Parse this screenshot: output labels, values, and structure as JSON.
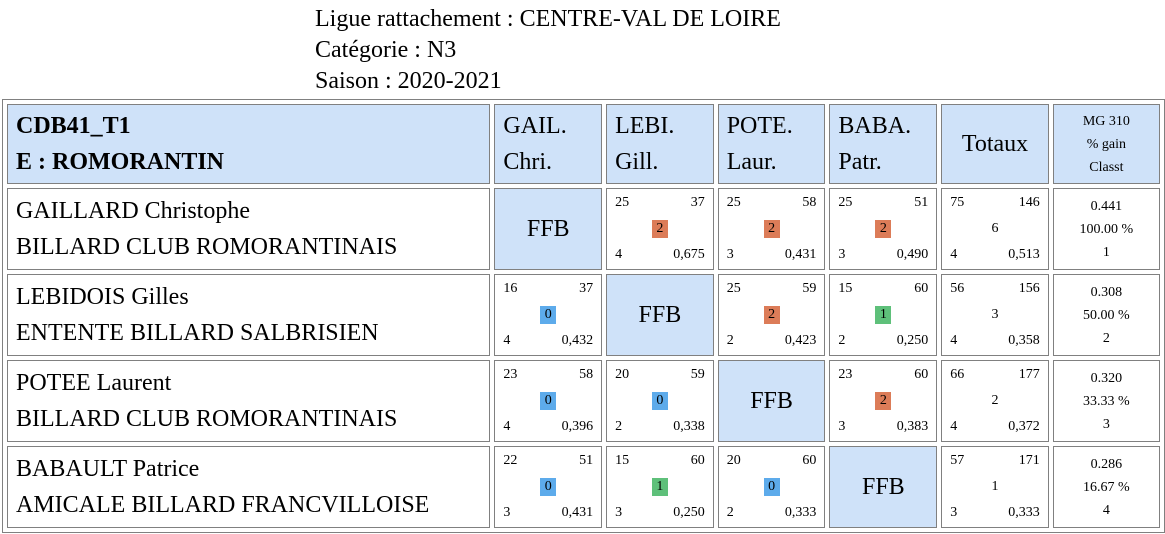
{
  "header": {
    "ligue": "Ligue rattachement : CENTRE-VAL DE LOIRE",
    "categorie": "Catégorie : N3",
    "saison": "Saison : 2020-2021"
  },
  "table": {
    "team_code": "CDB41_T1",
    "team_name": "E : ROMORANTIN",
    "columns": [
      {
        "l1": "GAIL.",
        "l2": "Chri."
      },
      {
        "l1": "LEBI.",
        "l2": "Gill."
      },
      {
        "l1": "POTE.",
        "l2": "Laur."
      },
      {
        "l1": "BABA.",
        "l2": "Patr."
      }
    ],
    "totals_label": "Totaux",
    "mg_header": {
      "l1": "MG 310",
      "l2": "% gain",
      "l3": "Classt"
    },
    "ffb_label": "FFB",
    "players": [
      {
        "name": "GAILLARD Christophe",
        "club": "BILLARD CLUB ROMORANTINAIS",
        "results": [
          null,
          {
            "tl": "25",
            "tr": "37",
            "mid": "2",
            "bl": "4",
            "br": "0,675"
          },
          {
            "tl": "25",
            "tr": "58",
            "mid": "2",
            "bl": "3",
            "br": "0,431"
          },
          {
            "tl": "25",
            "tr": "51",
            "mid": "2",
            "bl": "3",
            "br": "0,490"
          }
        ],
        "totals": {
          "tl": "75",
          "tr": "146",
          "mid": "6",
          "bl": "4",
          "br": "0,513"
        },
        "stats": {
          "mg": "0.441",
          "pct": "100.00 %",
          "rank": "1"
        }
      },
      {
        "name": "LEBIDOIS Gilles",
        "club": "ENTENTE BILLARD SALBRISIEN",
        "results": [
          {
            "tl": "16",
            "tr": "37",
            "mid": "0",
            "bl": "4",
            "br": "0,432"
          },
          null,
          {
            "tl": "25",
            "tr": "59",
            "mid": "2",
            "bl": "2",
            "br": "0,423"
          },
          {
            "tl": "15",
            "tr": "60",
            "mid": "1",
            "bl": "2",
            "br": "0,250"
          }
        ],
        "totals": {
          "tl": "56",
          "tr": "156",
          "mid": "3",
          "bl": "4",
          "br": "0,358"
        },
        "stats": {
          "mg": "0.308",
          "pct": "50.00 %",
          "rank": "2"
        }
      },
      {
        "name": "POTEE Laurent",
        "club": "BILLARD CLUB ROMORANTINAIS",
        "results": [
          {
            "tl": "23",
            "tr": "58",
            "mid": "0",
            "bl": "4",
            "br": "0,396"
          },
          {
            "tl": "20",
            "tr": "59",
            "mid": "0",
            "bl": "2",
            "br": "0,338"
          },
          null,
          {
            "tl": "23",
            "tr": "60",
            "mid": "2",
            "bl": "3",
            "br": "0,383"
          }
        ],
        "totals": {
          "tl": "66",
          "tr": "177",
          "mid": "2",
          "bl": "4",
          "br": "0,372"
        },
        "stats": {
          "mg": "0.320",
          "pct": "33.33 %",
          "rank": "3"
        }
      },
      {
        "name": "BABAULT Patrice",
        "club": "AMICALE BILLARD FRANCVILLOISE",
        "results": [
          {
            "tl": "22",
            "tr": "51",
            "mid": "0",
            "bl": "3",
            "br": "0,431"
          },
          {
            "tl": "15",
            "tr": "60",
            "mid": "1",
            "bl": "3",
            "br": "0,250"
          },
          {
            "tl": "20",
            "tr": "60",
            "mid": "0",
            "bl": "2",
            "br": "0,333"
          },
          null
        ],
        "totals": {
          "tl": "57",
          "tr": "171",
          "mid": "1",
          "bl": "3",
          "br": "0,333"
        },
        "stats": {
          "mg": "0.286",
          "pct": "16.67 %",
          "rank": "4"
        }
      }
    ]
  },
  "colors": {
    "points_0": "#5dabeb",
    "points_1": "#5ec07a",
    "points_2": "#dc7c58",
    "header_bg": "#cfe2f9"
  }
}
